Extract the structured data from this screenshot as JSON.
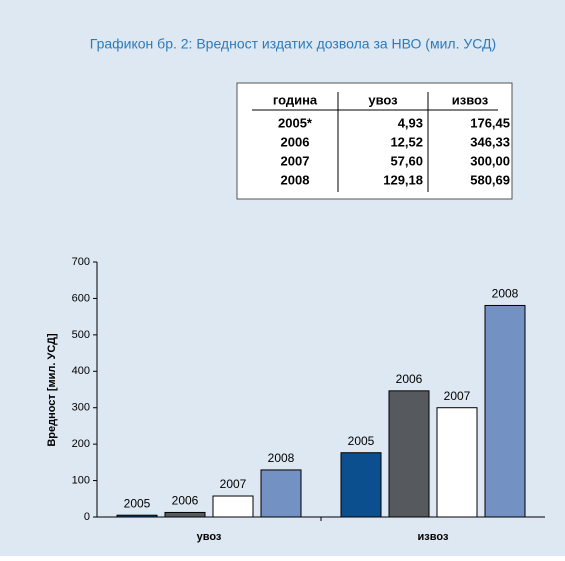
{
  "title": "Графикон бр. 2:  Вредност издатих дозвола за НВО (мил. УСД)",
  "table": {
    "header": [
      "година",
      "увоз",
      "извоз"
    ],
    "rows": [
      [
        "2005*",
        "4,93",
        "176,45"
      ],
      [
        "2006",
        "12,52",
        "346,33"
      ],
      [
        "2007",
        "57,60",
        "300,00"
      ],
      [
        "2008",
        "129,18",
        "580,69"
      ]
    ]
  },
  "chart_data": {
    "type": "bar",
    "ylabel": "Вредност [мил. УСД]",
    "categories": [
      "увоз",
      "извоз"
    ],
    "series": [
      {
        "name": "2005",
        "color": "#0b4f8e",
        "values": [
          4.93,
          176.45
        ]
      },
      {
        "name": "2006",
        "color": "#565a5e",
        "values": [
          12.52,
          346.33
        ]
      },
      {
        "name": "2007",
        "color": "#ffffff",
        "values": [
          57.6,
          300.0
        ]
      },
      {
        "name": "2008",
        "color": "#7391c2",
        "values": [
          129.18,
          580.69
        ]
      }
    ],
    "ylim": [
      0,
      700
    ],
    "yticks": [
      0,
      100,
      200,
      300,
      400,
      500,
      600,
      700
    ],
    "grid": false
  }
}
